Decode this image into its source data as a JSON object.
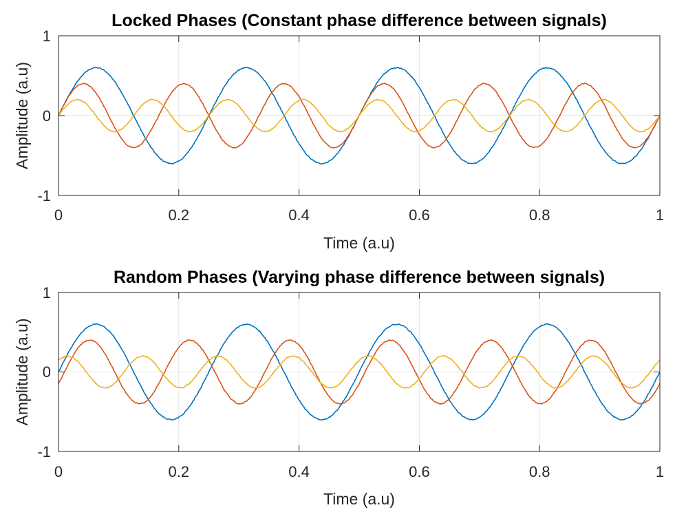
{
  "chart_data": [
    {
      "type": "line",
      "title": "Locked Phases (Constant phase difference between signals)",
      "xlabel": "Time (a.u)",
      "ylabel": "Amplitude (a.u)",
      "xlim": [
        0,
        1
      ],
      "ylim": [
        -1,
        1
      ],
      "xticks": [
        "0",
        "0.2",
        "0.4",
        "0.6",
        "0.8",
        "1"
      ],
      "yticks": [
        "-1",
        "0",
        "1"
      ],
      "grid": true,
      "series": [
        {
          "color": "#0072BD",
          "amplitude": 0.6,
          "frequency": 4,
          "phase_cycles": 0.0
        },
        {
          "color": "#D95319",
          "amplitude": 0.4,
          "frequency": 6,
          "phase_cycles": 0.0
        },
        {
          "color": "#EDB120",
          "amplitude": 0.2,
          "frequency": 8,
          "phase_cycles": 0.0
        }
      ]
    },
    {
      "type": "line",
      "title": "Random Phases (Varying phase difference between signals)",
      "xlabel": "Time (a.u)",
      "ylabel": "Amplitude (a.u)",
      "xlim": [
        0,
        1
      ],
      "ylim": [
        -1,
        1
      ],
      "xticks": [
        "0",
        "0.2",
        "0.4",
        "0.6",
        "0.8",
        "1"
      ],
      "yticks": [
        "-1",
        "0",
        "1"
      ],
      "grid": true,
      "series": [
        {
          "color": "#0072BD",
          "amplitude": 0.6,
          "frequency": 4,
          "phase_cycles": 0.0
        },
        {
          "color": "#D95319",
          "amplitude": 0.4,
          "frequency": 6,
          "phase_cycles": 0.94
        },
        {
          "color": "#EDB120",
          "amplitude": 0.2,
          "frequency": 8,
          "phase_cycles": 0.13
        }
      ]
    }
  ]
}
